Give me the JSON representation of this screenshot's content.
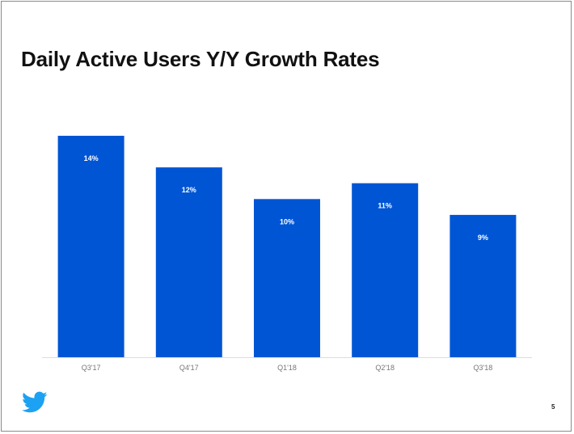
{
  "slide": {
    "title": "Daily Active Users Y/Y Growth Rates",
    "page_number": "5",
    "logo_icon": "twitter-bird-icon"
  },
  "chart_data": {
    "type": "bar",
    "categories": [
      "Q3'17",
      "Q4'17",
      "Q1'18",
      "Q2'18",
      "Q3'18"
    ],
    "values": [
      14,
      12,
      10,
      11,
      9
    ],
    "data_labels": [
      "14%",
      "12%",
      "10%",
      "11%",
      "9%"
    ],
    "title": "Daily Active Users Y/Y Growth Rates",
    "xlabel": "",
    "ylabel": "",
    "ylim": [
      0,
      14
    ],
    "grid": false,
    "legend": "none",
    "bar_color": "#0055d4",
    "axis_color": "#dddddd",
    "tick_label_color": "#777777",
    "data_label_color": "#ffffff"
  }
}
